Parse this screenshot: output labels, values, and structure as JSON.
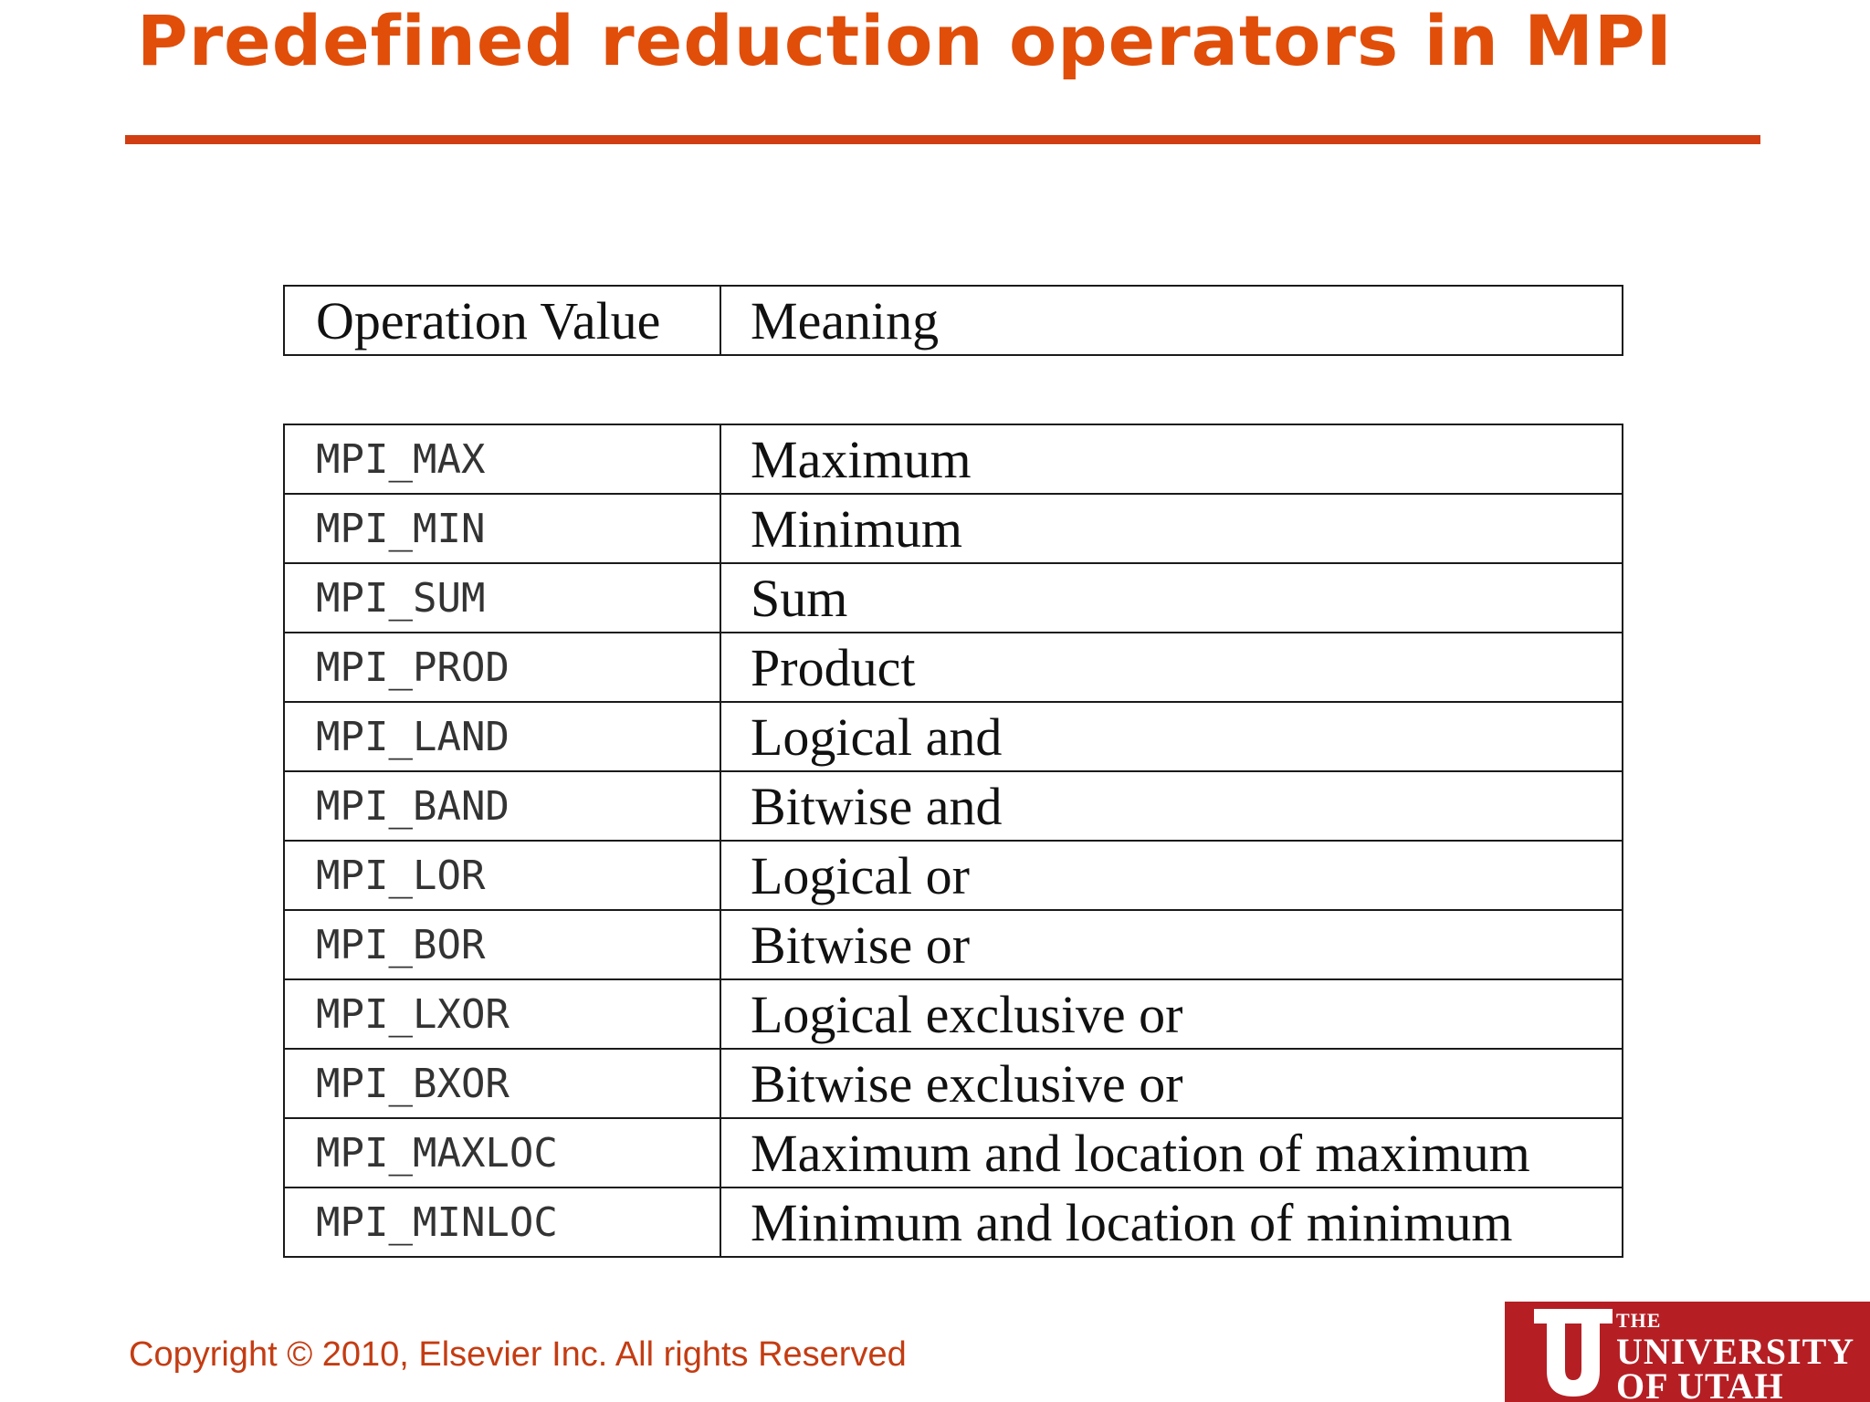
{
  "title": "Predefined reduction operators in MPI",
  "colors": {
    "title": "#e04e0a",
    "rule": "#d13e13",
    "copyright": "#c43c12",
    "logo_red": "#b51f24",
    "logo_text": "#ffffff"
  },
  "table": {
    "headers": [
      "Operation Value",
      "Meaning"
    ],
    "rows": [
      {
        "op": "MPI_MAX",
        "meaning": "Maximum"
      },
      {
        "op": "MPI_MIN",
        "meaning": "Minimum"
      },
      {
        "op": "MPI_SUM",
        "meaning": "Sum"
      },
      {
        "op": "MPI_PROD",
        "meaning": "Product"
      },
      {
        "op": "MPI_LAND",
        "meaning": "Logical and"
      },
      {
        "op": "MPI_BAND",
        "meaning": "Bitwise and"
      },
      {
        "op": "MPI_LOR",
        "meaning": "Logical or"
      },
      {
        "op": "MPI_BOR",
        "meaning": "Bitwise or"
      },
      {
        "op": "MPI_LXOR",
        "meaning": "Logical exclusive or"
      },
      {
        "op": "MPI_BXOR",
        "meaning": "Bitwise exclusive or"
      },
      {
        "op": "MPI_MAXLOC",
        "meaning": "Maximum and location of maximum"
      },
      {
        "op": "MPI_MINLOC",
        "meaning": "Minimum and location of minimum"
      }
    ]
  },
  "footer": {
    "copyright": "Copyright © 2010, Elsevier Inc. All rights Reserved"
  },
  "logo": {
    "icon": "university-u-logo-icon",
    "line1": "THE",
    "line2": "UNIVERSITY",
    "line3": "OF UTAH"
  }
}
